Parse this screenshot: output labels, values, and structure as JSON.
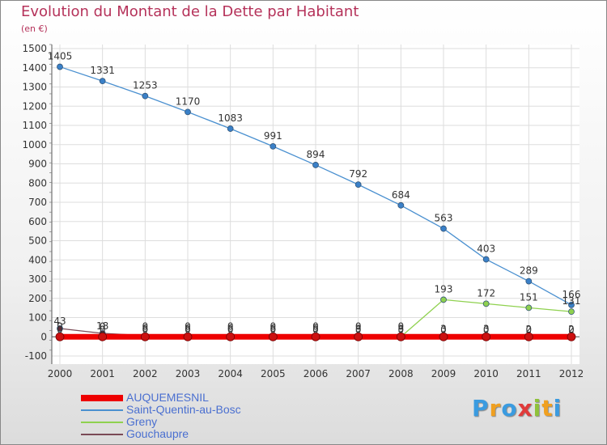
{
  "chart_data": {
    "type": "line",
    "title": "Evolution du Montant de la Dette par Habitant",
    "subtitle": "(en €)",
    "xlabel": "",
    "ylabel": "",
    "categories": [
      "2000",
      "2001",
      "2002",
      "2003",
      "2004",
      "2005",
      "2006",
      "2007",
      "2008",
      "2009",
      "2010",
      "2011",
      "2012"
    ],
    "ylim": [
      -100,
      1500
    ],
    "yticks": [
      -100,
      0,
      100,
      200,
      300,
      400,
      500,
      600,
      700,
      800,
      900,
      1000,
      1100,
      1200,
      1300,
      1400,
      1500
    ],
    "grid": true,
    "legend_position": "bottom-left",
    "series": [
      {
        "name": "AUQUEMESNIL",
        "color": "#ee0000",
        "values": [
          0,
          0,
          0,
          0,
          0,
          0,
          0,
          0,
          0,
          0,
          0,
          0,
          0
        ],
        "labels": [
          0,
          0,
          0,
          0,
          0,
          0,
          0,
          0,
          0,
          0,
          0,
          0,
          0
        ]
      },
      {
        "name": "Saint-Quentin-au-Bosc",
        "color": "#4a90d0",
        "values": [
          1405,
          1331,
          1253,
          1170,
          1083,
          991,
          894,
          792,
          684,
          563,
          403,
          289,
          166
        ],
        "labels": [
          1405,
          1331,
          1253,
          1170,
          1083,
          991,
          894,
          792,
          684,
          563,
          403,
          289,
          166
        ]
      },
      {
        "name": "Greny",
        "color": "#8fd14f",
        "values": [
          0,
          0,
          0,
          0,
          0,
          0,
          0,
          0,
          0,
          193,
          172,
          151,
          131
        ],
        "labels": [
          0,
          0,
          0,
          0,
          0,
          0,
          0,
          0,
          0,
          193,
          172,
          151,
          131
        ]
      },
      {
        "name": "Gouchaupre",
        "color": "#7a4a56",
        "values": [
          43,
          18,
          6,
          6,
          6,
          6,
          5,
          3,
          3,
          3,
          3,
          2,
          2
        ],
        "labels": [
          43,
          18,
          6,
          6,
          6,
          6,
          5,
          3,
          3,
          3,
          3,
          2,
          2
        ]
      }
    ]
  },
  "logo": {
    "letters": [
      "P",
      "r",
      "o",
      "x",
      "i",
      "t",
      "i"
    ],
    "colors": [
      "#3a9be0",
      "#f0a020",
      "#3a9be0",
      "#e03a3a",
      "#8fc23a",
      "#f0a020",
      "#3a9be0"
    ]
  }
}
